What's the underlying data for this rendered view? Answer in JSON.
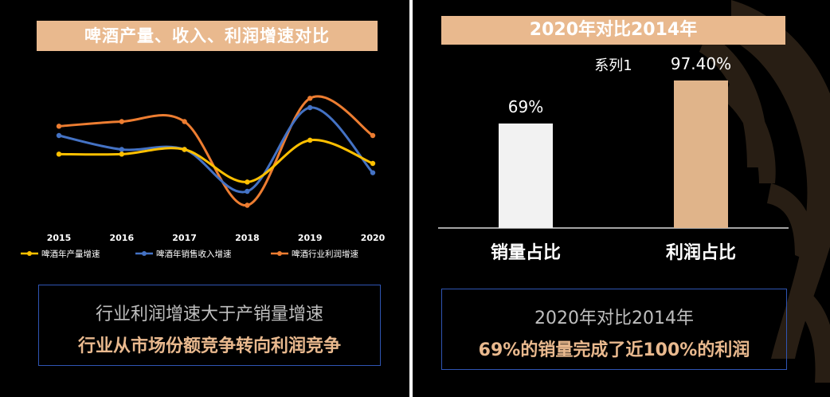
{
  "left": {
    "title": "啤酒产量、收入、利润增速对比",
    "caption_line1": "行业利润增速大于产销量增速",
    "caption_line2": "行业从市场份额竞争转向利润竞争"
  },
  "right": {
    "title": "2020年对比2014年",
    "caption_line1": "2020年对比2014年",
    "caption_line2_parts": [
      "69%",
      "的销量完成了",
      "近100%",
      "的利润"
    ]
  },
  "colors": {
    "banner": "#e9b98e",
    "production": "#ffc000",
    "sales": "#4472c4",
    "profit": "#ed7d31",
    "bar_volume": "#f2f2f2",
    "bar_profit": "#e0b48a",
    "caption_border": "#2f55b3"
  },
  "chart_data": [
    {
      "type": "line",
      "title": "啤酒产量、收入、利润增速对比",
      "categories": [
        "2015",
        "2016",
        "2017",
        "2018",
        "2019",
        "2020"
      ],
      "series": [
        {
          "name": "啤酒年产量增速",
          "values": [
            4,
            4,
            5,
            -2,
            7,
            2
          ]
        },
        {
          "name": "啤酒年销售收入增速",
          "values": [
            8,
            5,
            5,
            -4,
            14,
            0
          ]
        },
        {
          "name": "啤酒行业利润增速",
          "values": [
            10,
            11,
            11,
            -7,
            16,
            8
          ]
        }
      ],
      "ylim": [
        -10,
        20
      ],
      "legend": "bottom"
    },
    {
      "type": "bar",
      "title": "系列1",
      "categories": [
        "销量占比",
        "利润占比"
      ],
      "values": [
        69,
        97.4
      ],
      "labels": [
        "69%",
        "97.40%"
      ],
      "ylim": [
        0,
        120
      ]
    }
  ]
}
